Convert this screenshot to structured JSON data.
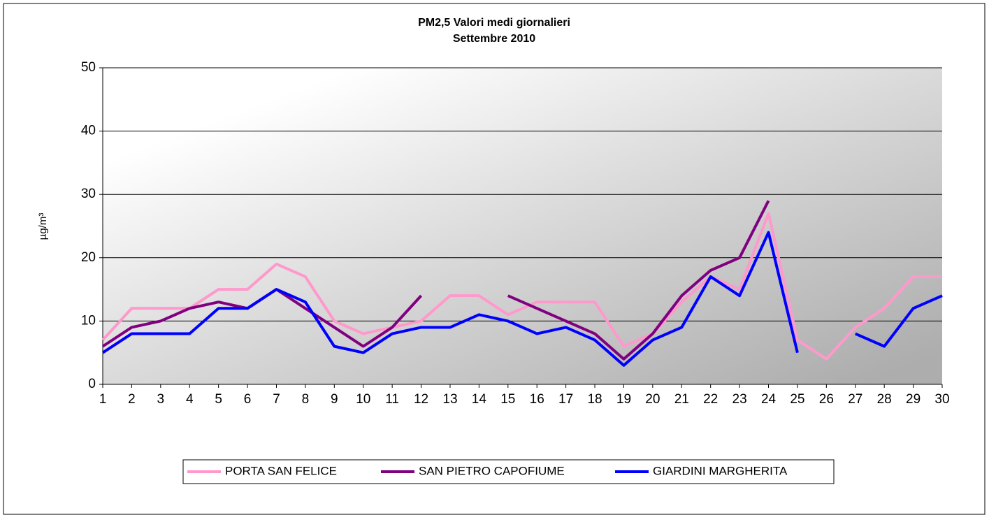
{
  "chart_data": {
    "type": "line",
    "title": "PM2,5 Valori medi giornalieri",
    "subtitle": "Settembre 2010",
    "y_label": "µg/m³",
    "categories": [
      "1",
      "2",
      "3",
      "4",
      "5",
      "6",
      "7",
      "8",
      "9",
      "10",
      "11",
      "12",
      "13",
      "14",
      "15",
      "16",
      "17",
      "18",
      "19",
      "20",
      "21",
      "22",
      "23",
      "24",
      "25",
      "26",
      "27",
      "28",
      "29",
      "30"
    ],
    "series": [
      {
        "name": "PORTA SAN FELICE",
        "color": "#ff99cc",
        "values": [
          7,
          12,
          12,
          12,
          15,
          15,
          19,
          17,
          10,
          8,
          9,
          10,
          14,
          14,
          11,
          13,
          13,
          13,
          6,
          8,
          13,
          17,
          15,
          27,
          7,
          4,
          9,
          12,
          17,
          17
        ]
      },
      {
        "name": "SAN PIETRO CAPOFIUME",
        "color": "#800080",
        "values": [
          6,
          9,
          10,
          12,
          13,
          12,
          15,
          12,
          9,
          6,
          9,
          14,
          null,
          null,
          14,
          12,
          10,
          8,
          4,
          8,
          14,
          18,
          20,
          29,
          null,
          null,
          null,
          null,
          null,
          null
        ]
      },
      {
        "name": "GIARDINI MARGHERITA",
        "color": "#0000ff",
        "values": [
          5,
          8,
          8,
          8,
          12,
          12,
          15,
          13,
          6,
          5,
          8,
          9,
          9,
          11,
          10,
          8,
          9,
          7,
          3,
          7,
          9,
          17,
          14,
          24,
          5,
          null,
          8,
          6,
          12,
          14
        ]
      }
    ],
    "ylim": [
      0,
      50
    ],
    "yticks": [
      0,
      10,
      20,
      30,
      40,
      50
    ],
    "grid": true,
    "legend": "bottom"
  }
}
